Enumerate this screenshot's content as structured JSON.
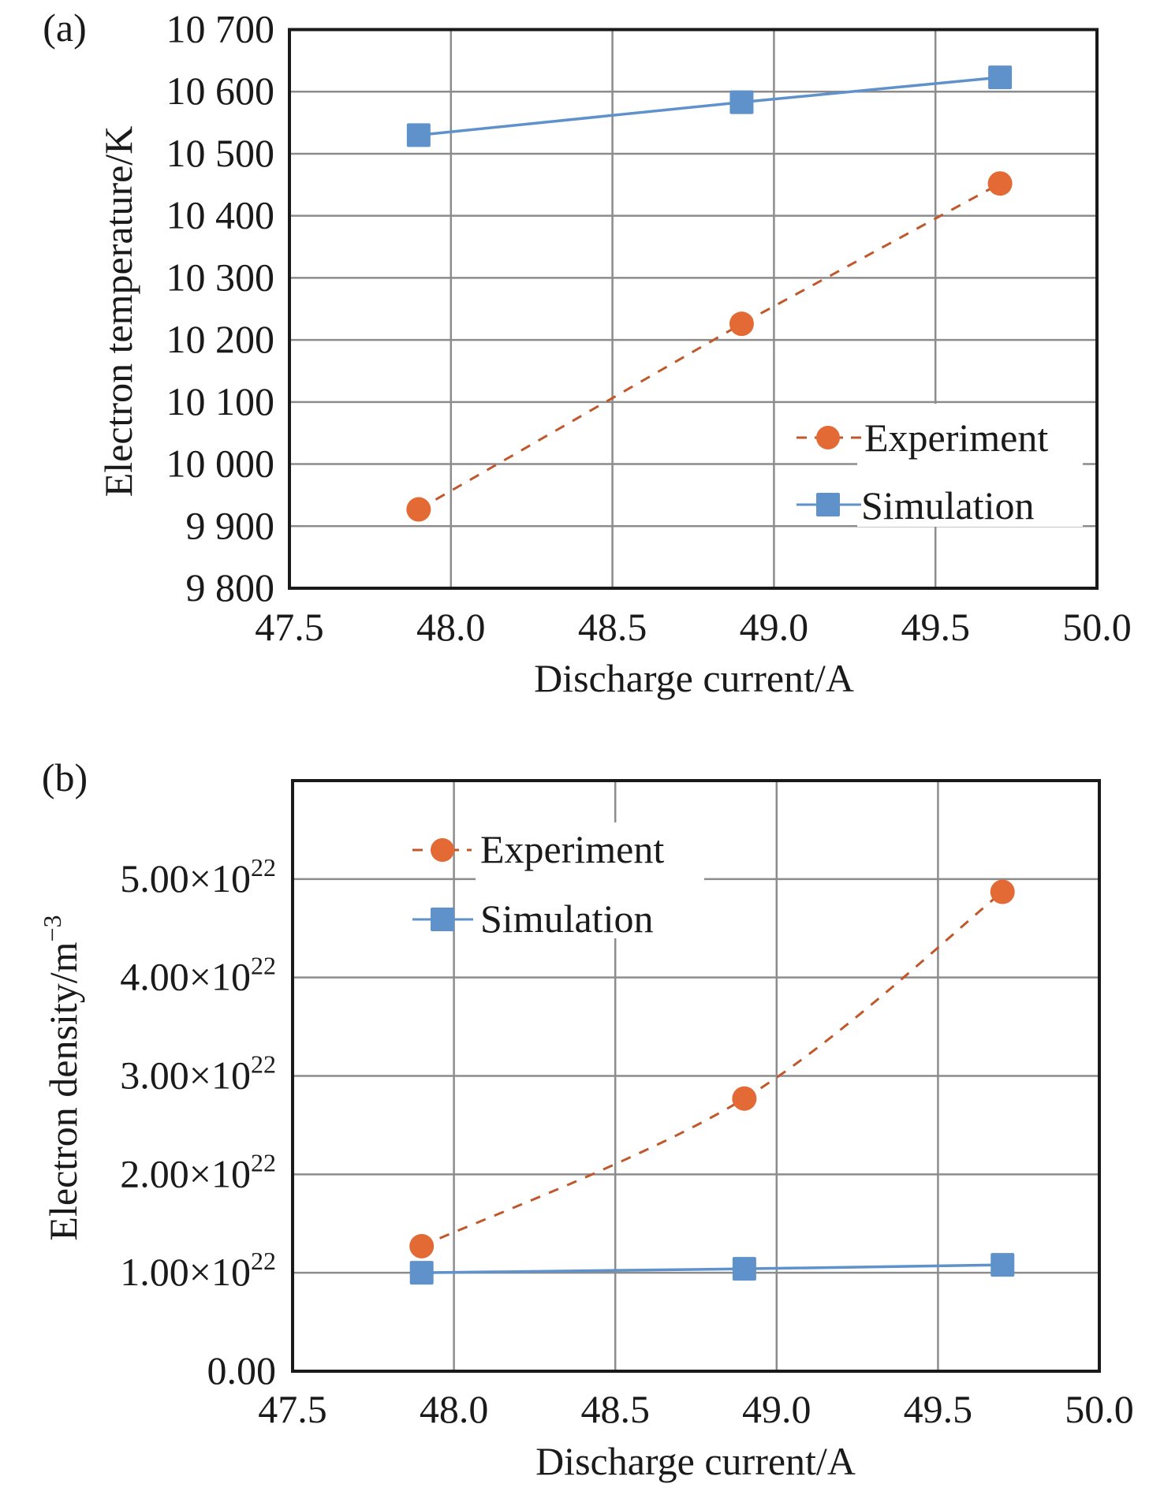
{
  "chart_data": [
    {
      "type": "line",
      "panel_label": "(a)",
      "title": "",
      "xlabel": "Discharge current/A",
      "ylabel": "Electron temperature/K",
      "xlim": [
        47.5,
        50.0
      ],
      "ylim": [
        9800,
        10700
      ],
      "x_ticks": [
        47.5,
        48.0,
        48.5,
        49.0,
        49.5,
        50.0
      ],
      "x_tick_labels": [
        "47.5",
        "48.0",
        "48.5",
        "49.0",
        "49.5",
        "50.0"
      ],
      "y_ticks": [
        9800,
        9900,
        10000,
        10100,
        10200,
        10300,
        10400,
        10500,
        10600,
        10700
      ],
      "y_tick_labels": [
        "9 800",
        "9 900",
        "10 000",
        "10 100",
        "10 200",
        "10 300",
        "10 400",
        "10 500",
        "10 600",
        "10 700"
      ],
      "grid": true,
      "legend_position": "bottom-right",
      "x": [
        47.9,
        48.9,
        49.7
      ],
      "series": [
        {
          "name": "Experiment",
          "values": [
            9927,
            10226,
            10452
          ],
          "color": "#e36a35",
          "line_color": "#c0582b",
          "marker": "circle",
          "line_style": "dashed"
        },
        {
          "name": "Simulation",
          "values": [
            10530,
            10583,
            10623
          ],
          "color": "#5f91cb",
          "line_color": "#5f91cb",
          "marker": "square",
          "line_style": "solid"
        }
      ]
    },
    {
      "type": "line",
      "panel_label": "(b)",
      "title": "",
      "xlabel": "Discharge current/A",
      "ylabel_main": "Electron density/m",
      "ylabel_sup": "−3",
      "xlim": [
        47.5,
        50.0
      ],
      "ylim": [
        0,
        6e+22
      ],
      "x_ticks": [
        47.5,
        48.0,
        48.5,
        49.0,
        49.5,
        50.0
      ],
      "x_tick_labels": [
        "47.5",
        "48.0",
        "48.5",
        "49.0",
        "49.5",
        "50.0"
      ],
      "y_ticks": [
        0,
        1e+22,
        2e+22,
        3e+22,
        4e+22,
        5e+22
      ],
      "y_tick_labels": [
        {
          "mantissa": "0.00",
          "exp": ""
        },
        {
          "mantissa": "1.00×10",
          "exp": "22"
        },
        {
          "mantissa": "2.00×10",
          "exp": "22"
        },
        {
          "mantissa": "3.00×10",
          "exp": "22"
        },
        {
          "mantissa": "4.00×10",
          "exp": "22"
        },
        {
          "mantissa": "5.00×10",
          "exp": "22"
        }
      ],
      "grid": true,
      "legend_position": "top-left",
      "x": [
        47.9,
        48.9,
        49.7
      ],
      "series": [
        {
          "name": "Experiment",
          "values": [
            1.27e+22,
            2.77e+22,
            4.87e+22
          ],
          "color": "#e36a35",
          "line_color": "#c0582b",
          "marker": "circle",
          "line_style": "dashed",
          "smooth": true
        },
        {
          "name": "Simulation",
          "values": [
            1e+22,
            1.04e+22,
            1.08e+22
          ],
          "color": "#5f91cb",
          "line_color": "#5f91cb",
          "marker": "square",
          "line_style": "solid"
        }
      ]
    }
  ]
}
